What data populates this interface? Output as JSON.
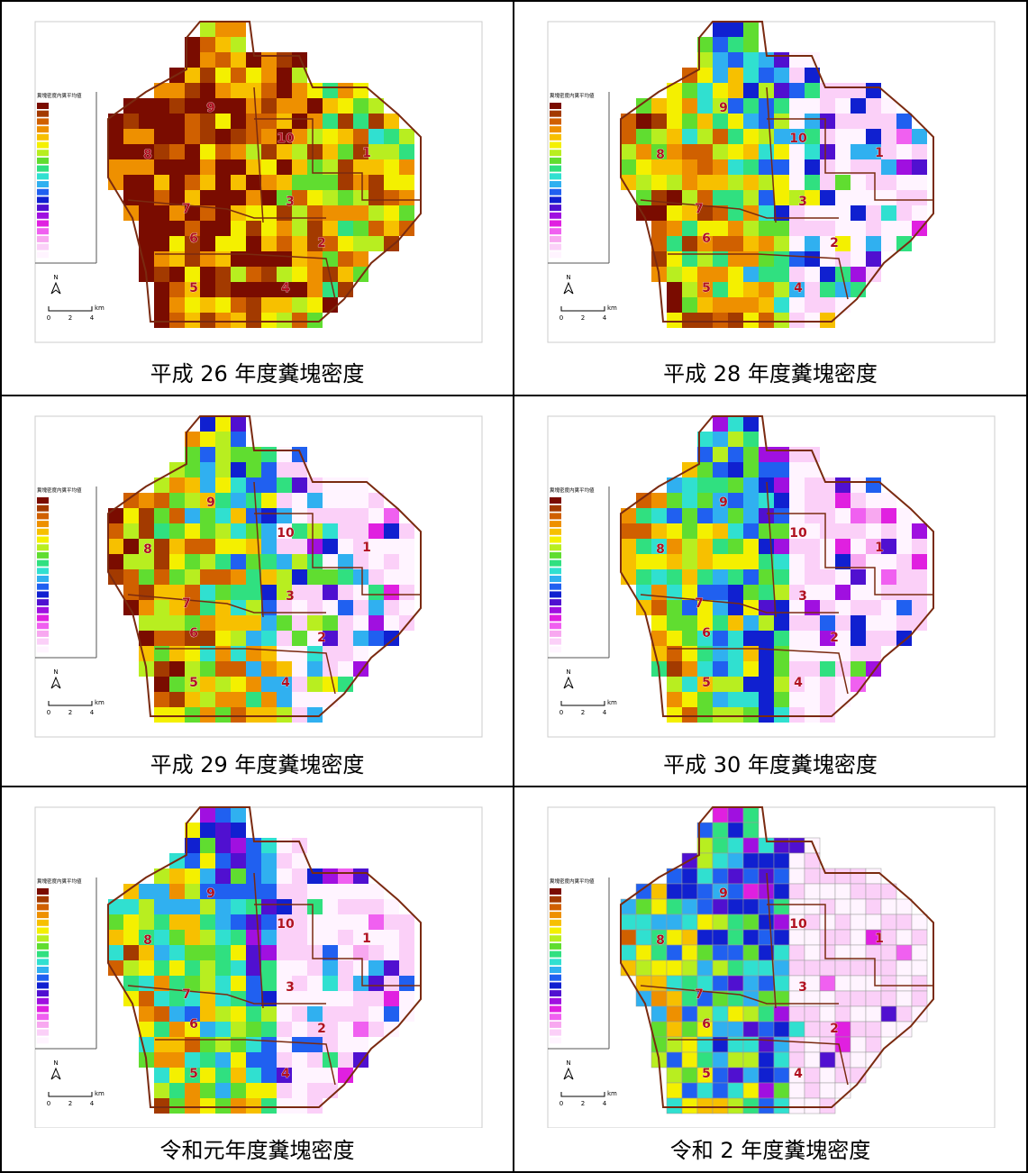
{
  "panels": [
    {
      "caption": "平成 26 年度糞塊密度",
      "legend_title": "糞塊密度内糞平均値",
      "north": "N",
      "scale": [
        "0",
        "2",
        "4"
      ],
      "scale_unit": "km",
      "districts": [
        "1",
        "2",
        "3",
        "4",
        "5",
        "6",
        "7",
        "8",
        "9",
        "10"
      ]
    },
    {
      "caption": "平成 28 年度糞塊密度",
      "legend_title": "糞塊密度内糞平均値",
      "north": "N",
      "scale": [
        "0",
        "2",
        "4"
      ],
      "scale_unit": "km",
      "districts": [
        "1",
        "2",
        "3",
        "4",
        "5",
        "6",
        "7",
        "8",
        "9",
        "10"
      ]
    },
    {
      "caption": "平成 29 年度糞塊密度",
      "legend_title": "糞塊密度内糞平均値",
      "north": "N",
      "scale": [
        "0",
        "2",
        "4"
      ],
      "scale_unit": "km",
      "districts": [
        "1",
        "2",
        "3",
        "4",
        "5",
        "6",
        "7",
        "8",
        "9",
        "10"
      ]
    },
    {
      "caption": "平成 30 年度糞塊密度",
      "legend_title": "糞塊密度内糞平均値",
      "north": "N",
      "scale": [
        "0",
        "2",
        "4"
      ],
      "scale_unit": "km",
      "districts": [
        "1",
        "2",
        "3",
        "4",
        "5",
        "6",
        "7",
        "8",
        "9",
        "10"
      ]
    },
    {
      "caption": "令和元年度糞塊密度",
      "legend_title": "糞塊密度内糞平均値",
      "north": "N",
      "scale": [
        "0",
        "2",
        "4"
      ],
      "scale_unit": "km",
      "districts": [
        "1",
        "2",
        "3",
        "4",
        "5",
        "6",
        "7",
        "8",
        "9",
        "10"
      ]
    },
    {
      "caption": "令和 2 年度糞塊密度",
      "legend_title": "糞塊密度内糞平均値",
      "north": "N",
      "scale": [
        "0",
        "2",
        "4"
      ],
      "scale_unit": "km",
      "districts": [
        "1",
        "2",
        "3",
        "4",
        "5",
        "6",
        "7",
        "8",
        "9",
        "10"
      ]
    }
  ]
}
